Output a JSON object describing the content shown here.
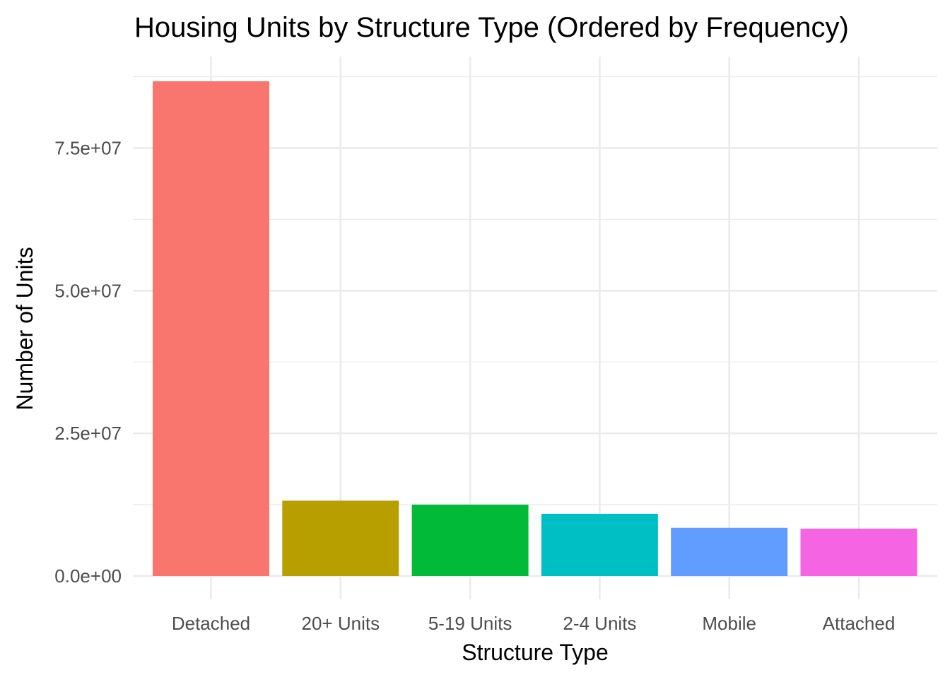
{
  "chart_data": {
    "type": "bar",
    "title": "Housing Units by Structure Type (Ordered by Frequency)",
    "xlabel": "Structure Type",
    "ylabel": "Number of Units",
    "categories": [
      "Detached",
      "20+ Units",
      "5-19 Units",
      "2-4 Units",
      "Mobile",
      "Attached"
    ],
    "values": [
      86700000,
      13200000,
      12500000,
      10900000,
      8450000,
      8300000
    ],
    "colors": [
      "#F8766D",
      "#B79F00",
      "#00BA38",
      "#00BFC4",
      "#619CFF",
      "#F564E3"
    ],
    "ylim": [
      0,
      87000000
    ],
    "yticks": [
      0,
      25000000,
      50000000,
      75000000
    ],
    "ytick_labels": [
      "0.0e+00",
      "2.5e+07",
      "5.0e+07",
      "7.5e+07"
    ],
    "grid": true,
    "legend": "none"
  }
}
